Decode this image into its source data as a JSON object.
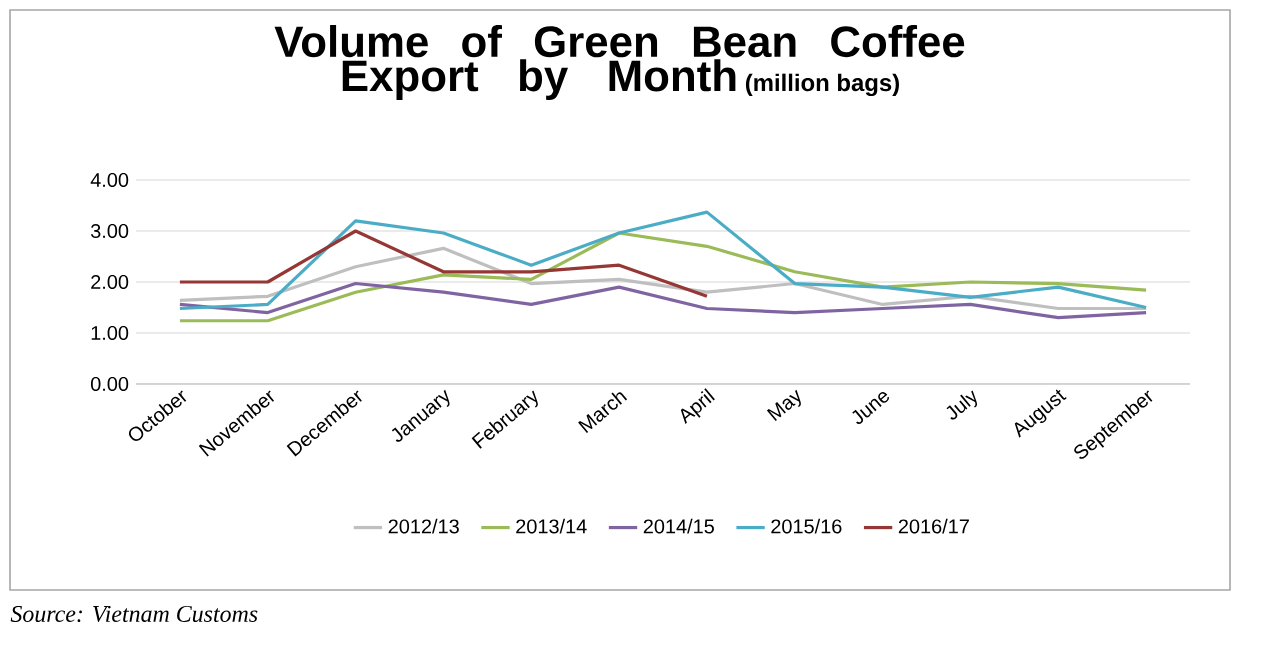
{
  "chart_data": {
    "type": "line",
    "title": "Volume of Green Bean Coffee Export by Month",
    "subtitle": "(million bags)",
    "categories": [
      "October",
      "November",
      "December",
      "January",
      "February",
      "March",
      "April",
      "May",
      "June",
      "July",
      "August",
      "September"
    ],
    "ylim": [
      0,
      4
    ],
    "yticks": [
      {
        "value": 0,
        "label": "0.00"
      },
      {
        "value": 1,
        "label": "1.00"
      },
      {
        "value": 2,
        "label": "2.00"
      },
      {
        "value": 3,
        "label": "3.00"
      },
      {
        "value": 4,
        "label": "4.00"
      }
    ],
    "grid": "y",
    "legend": "bottom",
    "marker": "none",
    "line_style": "solid",
    "series": [
      {
        "name": "2012/13",
        "color": "#bfbfbf",
        "values": [
          1.64,
          1.72,
          2.3,
          2.66,
          1.97,
          2.05,
          1.8,
          1.97,
          1.56,
          1.72,
          1.48,
          1.48
        ]
      },
      {
        "name": "2013/14",
        "color": "#9bbb59",
        "values": [
          1.24,
          1.24,
          1.8,
          2.14,
          2.05,
          2.96,
          2.7,
          2.2,
          1.9,
          2.0,
          1.97,
          1.84
        ]
      },
      {
        "name": "2014/15",
        "color": "#8064a2",
        "values": [
          1.56,
          1.4,
          1.97,
          1.8,
          1.56,
          1.9,
          1.48,
          1.4,
          1.48,
          1.56,
          1.3,
          1.4
        ]
      },
      {
        "name": "2015/16",
        "color": "#4bacc6",
        "values": [
          1.48,
          1.56,
          3.2,
          2.96,
          2.33,
          2.96,
          3.37,
          1.97,
          1.9,
          1.7,
          1.9,
          1.5
        ]
      },
      {
        "name": "2016/17",
        "color": "#953735",
        "values": [
          2.0,
          2.0,
          3.0,
          2.2,
          2.2,
          2.33,
          1.72,
          null,
          null,
          null,
          null,
          null
        ]
      }
    ],
    "annotations": [
      "Source: Vietnam Customs"
    ]
  }
}
